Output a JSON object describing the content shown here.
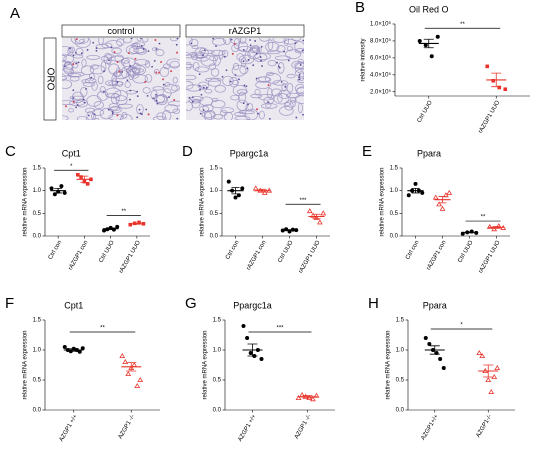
{
  "image_panel": {
    "letter": "A",
    "columns": [
      "control",
      "rAZGP1"
    ],
    "row_label": "ORO"
  },
  "chart_data": [
    {
      "type": "dot",
      "letter": "B",
      "title": "Oil Red O",
      "ylabel": "relative intensity",
      "categories": [
        "Ctrl UUO",
        "rAZGP1 UUO"
      ],
      "colors": [
        "#000000",
        "#e8332a"
      ],
      "markers": [
        "circle",
        "square"
      ],
      "points": [
        [
          800000,
          750000,
          620000,
          850000
        ],
        [
          500000,
          330000,
          250000,
          230000
        ]
      ],
      "mean": [
        770000,
        340000
      ],
      "sem": [
        50000,
        80000
      ],
      "ylim": [
        150000,
        1000000
      ],
      "yticks": [
        {
          "value": 200000,
          "label": "2.0×10⁵"
        },
        {
          "value": 400000,
          "label": "4.0×10⁵"
        },
        {
          "value": 600000,
          "label": "6.0×10⁵"
        },
        {
          "value": 800000,
          "label": "8.0×10⁵"
        },
        {
          "value": 1000000,
          "label": "1.0×10⁶"
        }
      ],
      "annotations": [
        {
          "label": "**",
          "from": 0,
          "to": 1,
          "y": 950000
        }
      ]
    },
    {
      "type": "dot",
      "letter": "C",
      "title": "Cpt1",
      "ylabel": "relative mRNA expression",
      "categories": [
        "Ctrl con",
        "rAZGP1 con",
        "Ctrl UUO",
        "rAZGP1 UUO"
      ],
      "colors": [
        "#000000",
        "#e8332a",
        "#000000",
        "#e8332a"
      ],
      "markers": [
        "circle",
        "square",
        "circle",
        "square"
      ],
      "points": [
        [
          1.05,
          0.92,
          0.98,
          1.1,
          0.95
        ],
        [
          1.35,
          1.3,
          1.2,
          1.15,
          1.25
        ],
        [
          0.12,
          0.15,
          0.18,
          0.14,
          0.2
        ],
        [
          0.25,
          0.28,
          0.3,
          0.27
        ]
      ],
      "mean": [
        1.0,
        1.25,
        0.16,
        0.27
      ],
      "sem": [
        0.05,
        0.07,
        0.02,
        0.01
      ],
      "ylim": [
        0,
        1.5
      ],
      "yticks": [
        {
          "value": 0,
          "label": "0.0"
        },
        0.5,
        {
          "value": 1,
          "label": "1.0"
        },
        1.5
      ],
      "annotations": [
        {
          "label": "*",
          "from": 0,
          "to": 1,
          "y": 1.45
        },
        {
          "label": "**",
          "from": 2,
          "to": 3,
          "y": 0.45
        }
      ]
    },
    {
      "type": "dot",
      "letter": "D",
      "title": "Ppargc1a",
      "ylabel": "relative mRNA expression",
      "categories": [
        "Ctrl con",
        "rAZGP1 con",
        "Ctrl UUO",
        "rAZGP1 UUO"
      ],
      "colors": [
        "#000000",
        "#e8332a",
        "#000000",
        "#e8332a"
      ],
      "markers": [
        "circle",
        "triangle",
        "circle",
        "triangle"
      ],
      "points": [
        [
          1.2,
          1.0,
          0.85,
          0.9,
          1.05
        ],
        [
          1.05,
          1.0,
          0.95,
          1.0
        ],
        [
          0.12,
          0.15,
          0.1,
          0.14,
          0.13
        ],
        [
          0.55,
          0.45,
          0.4,
          0.3,
          0.5
        ]
      ],
      "mean": [
        1.0,
        1.0,
        0.13,
        0.43
      ],
      "sem": [
        0.07,
        0.03,
        0.01,
        0.05
      ],
      "ylim": [
        0,
        1.5
      ],
      "yticks": [
        {
          "value": 0,
          "label": "0.0"
        },
        0.5,
        {
          "value": 1,
          "label": "1.0"
        },
        1.5
      ],
      "annotations": [
        {
          "label": "***",
          "from": 2,
          "to": 3,
          "y": 0.7
        }
      ]
    },
    {
      "type": "dot",
      "letter": "E",
      "title": "Ppara",
      "ylabel": "relative mRNA expression",
      "categories": [
        "Ctrl con",
        "rAZGP1 con",
        "Ctrl UUO",
        "rAZGP1 UUO"
      ],
      "colors": [
        "#000000",
        "#e8332a",
        "#000000",
        "#e8332a"
      ],
      "markers": [
        "circle",
        "triangle",
        "circle",
        "triangle"
      ],
      "points": [
        [
          0.9,
          1.0,
          1.15,
          1.0,
          0.95
        ],
        [
          0.85,
          0.7,
          0.6,
          0.9,
          0.95
        ],
        [
          0.05,
          0.08,
          0.1,
          0.07
        ],
        [
          0.2,
          0.15,
          0.22,
          0.18
        ]
      ],
      "mean": [
        1.0,
        0.8,
        0.08,
        0.19
      ],
      "sem": [
        0.05,
        0.07,
        0.01,
        0.02
      ],
      "ylim": [
        0,
        1.5
      ],
      "yticks": [
        {
          "value": 0,
          "label": "0.0"
        },
        0.5,
        {
          "value": 1,
          "label": "1.0"
        },
        1.5
      ],
      "annotations": [
        {
          "label": "**",
          "from": 2,
          "to": 3,
          "y": 0.33
        }
      ]
    },
    {
      "type": "dot",
      "letter": "F",
      "title": "Cpt1",
      "ylabel": "relative mRNA expression",
      "categories": [
        "AZGP1 +/+",
        "AZGP1 -/-"
      ],
      "colors": [
        "#000000",
        "#e8332a"
      ],
      "markers": [
        "circle",
        "triangle"
      ],
      "points": [
        [
          1.05,
          1.0,
          0.98,
          1.02,
          1.0,
          0.97,
          1.03
        ],
        [
          0.9,
          0.8,
          0.6,
          0.7,
          0.75,
          0.4,
          0.5
        ]
      ],
      "mean": [
        1.0,
        0.72
      ],
      "sem": [
        0.02,
        0.07
      ],
      "ylim": [
        0,
        1.5
      ],
      "yticks": [
        {
          "value": 0,
          "label": "0.0"
        },
        0.5,
        {
          "value": 1,
          "label": "1.0"
        },
        1.5
      ],
      "annotations": [
        {
          "label": "**",
          "from": 0,
          "to": 1,
          "y": 1.3
        }
      ]
    },
    {
      "type": "dot",
      "letter": "G",
      "title": "Ppargc1a",
      "ylabel": "relative mRNA expression",
      "categories": [
        "AZGP1 +/+",
        "AZGP1 -/-"
      ],
      "colors": [
        "#000000",
        "#e8332a"
      ],
      "markers": [
        "circle",
        "triangle"
      ],
      "points": [
        [
          1.4,
          1.2,
          0.95,
          0.9,
          1.0,
          0.85
        ],
        [
          0.2,
          0.25,
          0.22,
          0.2,
          0.18,
          0.24
        ]
      ],
      "mean": [
        1.0,
        0.22
      ],
      "sem": [
        0.1,
        0.02
      ],
      "ylim": [
        0,
        1.5
      ],
      "yticks": [
        {
          "value": 0,
          "label": "0.0"
        },
        0.5,
        {
          "value": 1,
          "label": "1.0"
        },
        1.5
      ],
      "annotations": [
        {
          "label": "***",
          "from": 0,
          "to": 1,
          "y": 1.3
        }
      ]
    },
    {
      "type": "dot",
      "letter": "H",
      "title": "Ppara",
      "ylabel": "relative mRNA expression",
      "categories": [
        "AZGP1+/+",
        "AZGP1-/-"
      ],
      "colors": [
        "#000000",
        "#e8332a"
      ],
      "markers": [
        "circle",
        "triangle"
      ],
      "points": [
        [
          1.2,
          1.1,
          1.0,
          0.95,
          0.85,
          0.7
        ],
        [
          0.95,
          0.9,
          0.65,
          0.5,
          0.3,
          0.55,
          0.7
        ]
      ],
      "mean": [
        1.0,
        0.65
      ],
      "sem": [
        0.07,
        0.1
      ],
      "ylim": [
        0,
        1.5
      ],
      "yticks": [
        {
          "value": 0,
          "label": "0.0"
        },
        0.5,
        {
          "value": 1,
          "label": "1.0"
        },
        1.5
      ],
      "annotations": [
        {
          "label": "*",
          "from": 0,
          "to": 1,
          "y": 1.35
        }
      ]
    }
  ]
}
